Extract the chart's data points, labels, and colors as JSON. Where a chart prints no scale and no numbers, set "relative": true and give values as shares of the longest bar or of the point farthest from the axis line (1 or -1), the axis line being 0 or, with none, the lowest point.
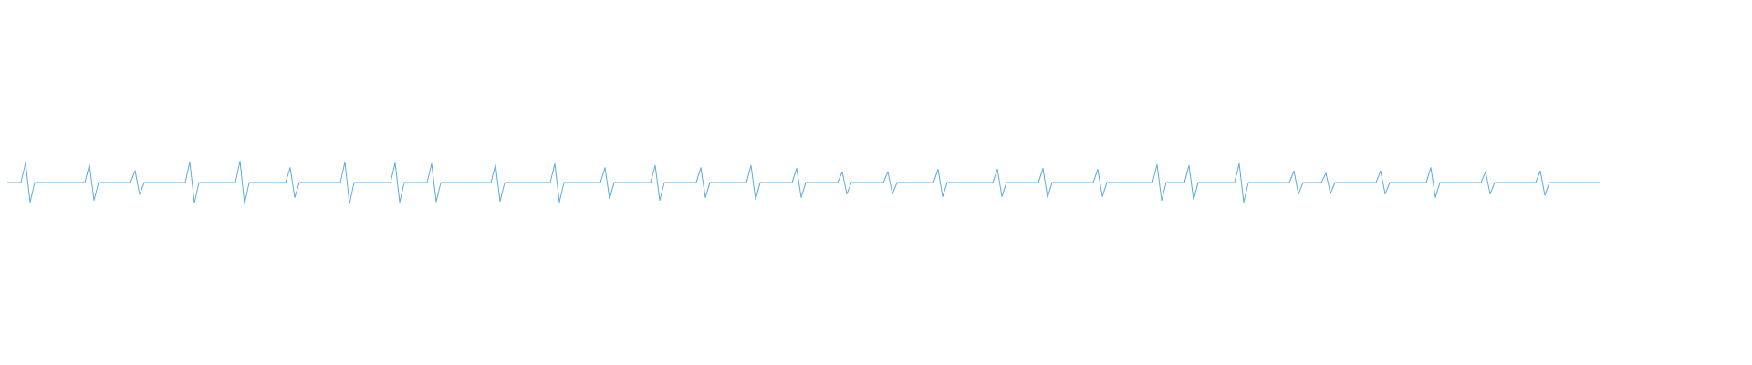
{
  "chart_data": {
    "type": "line",
    "relative": true,
    "line_style": "solid",
    "marker": "none",
    "categories": [
      null,
      null,
      null,
      null,
      null,
      null,
      null,
      null,
      null,
      null,
      null,
      null,
      null,
      null,
      null,
      null,
      null,
      null,
      null,
      null,
      null,
      null,
      null,
      null,
      null,
      null,
      null,
      null,
      null,
      null,
      null,
      null,
      null,
      null,
      null,
      null,
      null,
      null,
      null,
      null,
      null,
      null,
      null,
      null,
      null,
      null,
      null,
      null,
      null,
      null,
      null,
      null,
      null,
      null,
      null,
      null,
      null,
      null,
      null,
      null,
      null,
      null,
      null,
      null,
      null,
      null,
      null,
      null,
      null,
      null,
      null,
      null,
      null,
      null,
      null,
      null,
      null,
      null,
      null,
      null,
      null,
      null,
      null,
      null,
      null,
      null,
      null,
      null,
      null,
      null,
      null,
      null,
      null,
      null,
      null,
      null,
      null,
      null,
      null,
      null,
      null,
      null,
      null,
      null,
      null,
      null,
      null,
      null,
      null,
      null,
      null,
      null,
      null,
      null,
      null,
      null,
      null,
      null,
      null,
      null,
      null,
      null,
      null,
      null,
      null,
      null,
      null,
      null,
      null,
      null,
      null,
      null,
      null,
      null,
      null,
      null,
      null,
      null,
      null,
      null,
      null,
      null,
      null,
      null,
      null,
      null,
      null,
      null,
      null,
      null,
      null,
      null,
      null,
      null,
      null,
      null,
      null,
      null,
      null,
      null,
      null,
      null,
      null,
      null,
      null,
      null,
      null,
      null,
      null,
      null,
      null,
      null,
      null,
      null,
      null,
      null,
      null,
      null,
      null,
      null,
      null,
      null,
      null,
      null,
      null,
      null,
      null,
      null,
      null,
      null,
      null,
      null,
      null,
      null,
      null,
      null,
      null,
      null,
      null,
      null,
      null,
      null,
      null,
      null,
      null,
      null,
      null,
      null,
      null,
      null,
      null,
      null,
      null,
      null,
      null,
      null,
      null,
      null,
      null,
      null,
      null,
      null,
      null,
      null,
      null,
      null,
      null,
      null,
      null,
      null,
      null,
      null,
      null,
      null,
      null,
      null,
      null,
      null,
      null,
      null,
      null,
      null,
      null,
      null,
      null,
      null,
      null,
      null,
      null,
      null,
      null,
      null,
      null,
      null,
      null,
      null,
      null,
      null,
      null,
      null,
      null,
      null,
      null,
      null,
      null,
      null,
      null,
      null,
      null,
      null,
      null,
      null,
      null,
      null,
      null,
      null,
      null,
      null,
      null,
      null,
      null,
      null,
      null,
      null,
      null,
      null,
      null,
      null,
      null,
      null,
      null,
      null,
      null,
      null,
      null,
      null,
      null,
      null,
      null,
      null,
      null,
      null,
      null,
      null,
      null,
      null,
      null,
      null,
      null,
      null,
      null,
      null,
      null,
      null,
      null,
      null,
      null,
      null,
      null,
      null,
      null,
      null,
      null,
      null,
      null,
      null,
      null,
      null,
      null,
      null,
      null,
      null,
      null,
      null,
      null,
      null,
      null,
      null,
      null,
      null,
      null,
      null,
      null,
      null,
      null,
      null,
      null,
      null,
      null,
      null
    ],
    "series": [
      {
        "color": "#5aabe1",
        "values": [
          0.5,
          0.5,
          0.5,
          0.5,
          0.96,
          0.04,
          0.5,
          0.5,
          0.5,
          0.5,
          0.5,
          0.5,
          0.5,
          0.5,
          0.5,
          0.5,
          0.5,
          0.5,
          0.92,
          0.08,
          0.5,
          0.5,
          0.5,
          0.5,
          0.5,
          0.5,
          0.5,
          0.5,
          0.78,
          0.22,
          0.5,
          0.5,
          0.5,
          0.5,
          0.5,
          0.5,
          0.5,
          0.5,
          0.5,
          0.5,
          0.98,
          0.02,
          0.5,
          0.5,
          0.5,
          0.5,
          0.5,
          0.5,
          0.5,
          0.5,
          0.5,
          1,
          0,
          0.5,
          0.5,
          0.5,
          0.5,
          0.5,
          0.5,
          0.5,
          0.5,
          0.5,
          0.85,
          0.15,
          0.5,
          0.5,
          0.5,
          0.5,
          0.5,
          0.5,
          0.5,
          0.5,
          0.5,
          0.5,
          0.98,
          0,
          0.5,
          0.5,
          0.5,
          0.5,
          0.5,
          0.5,
          0.5,
          0.5,
          0.5,
          0.96,
          0.04,
          0.5,
          0.5,
          0.5,
          0.5,
          0.5,
          0.5,
          0.94,
          0.05,
          0.5,
          0.5,
          0.5,
          0.5,
          0.5,
          0.5,
          0.5,
          0.5,
          0.5,
          0.5,
          0.5,
          0.5,
          0.92,
          0.06,
          0.5,
          0.5,
          0.5,
          0.5,
          0.5,
          0.5,
          0.5,
          0.5,
          0.5,
          0.5,
          0.5,
          0.94,
          0.04,
          0.5,
          0.5,
          0.5,
          0.5,
          0.5,
          0.5,
          0.5,
          0.5,
          0.5,
          0.85,
          0.12,
          0.5,
          0.5,
          0.5,
          0.5,
          0.5,
          0.5,
          0.5,
          0.5,
          0.5,
          0.9,
          0.08,
          0.5,
          0.5,
          0.5,
          0.5,
          0.5,
          0.5,
          0.5,
          0.5,
          0.85,
          0.15,
          0.5,
          0.5,
          0.5,
          0.5,
          0.5,
          0.5,
          0.5,
          0.5,
          0.5,
          0.9,
          0.1,
          0.5,
          0.5,
          0.5,
          0.5,
          0.5,
          0.5,
          0.5,
          0.5,
          0.83,
          0.15,
          0.5,
          0.5,
          0.5,
          0.5,
          0.5,
          0.5,
          0.5,
          0.5,
          0.75,
          0.23,
          0.5,
          0.5,
          0.5,
          0.5,
          0.5,
          0.5,
          0.5,
          0.5,
          0.75,
          0.23,
          0.5,
          0.5,
          0.5,
          0.5,
          0.5,
          0.5,
          0.5,
          0.5,
          0.5,
          0.81,
          0.17,
          0.5,
          0.5,
          0.5,
          0.5,
          0.5,
          0.5,
          0.5,
          0.5,
          0.5,
          0.5,
          0.5,
          0.81,
          0.17,
          0.5,
          0.5,
          0.5,
          0.5,
          0.5,
          0.5,
          0.5,
          0.5,
          0.83,
          0.15,
          0.5,
          0.5,
          0.5,
          0.5,
          0.5,
          0.5,
          0.5,
          0.5,
          0.5,
          0.5,
          0.81,
          0.17,
          0.5,
          0.5,
          0.5,
          0.5,
          0.5,
          0.5,
          0.5,
          0.5,
          0.5,
          0.5,
          0.5,
          0.92,
          0.08,
          0.5,
          0.5,
          0.5,
          0.5,
          0.5,
          0.9,
          0.1,
          0.5,
          0.5,
          0.5,
          0.5,
          0.5,
          0.5,
          0.5,
          0.5,
          0.5,
          0.94,
          0.04,
          0.5,
          0.5,
          0.5,
          0.5,
          0.5,
          0.5,
          0.5,
          0.5,
          0.5,
          0.5,
          0.77,
          0.23,
          0.5,
          0.5,
          0.5,
          0.5,
          0.5,
          0.72,
          0.25,
          0.5,
          0.5,
          0.5,
          0.5,
          0.5,
          0.5,
          0.5,
          0.5,
          0.5,
          0.5,
          0.77,
          0.23,
          0.5,
          0.5,
          0.5,
          0.5,
          0.5,
          0.5,
          0.5,
          0.5,
          0.5,
          0.85,
          0.15,
          0.5,
          0.5,
          0.5,
          0.5,
          0.5,
          0.5,
          0.5,
          0.5,
          0.5,
          0.5,
          0.75,
          0.23,
          0.5,
          0.5,
          0.5,
          0.5,
          0.5,
          0.5,
          0.5,
          0.5,
          0.5,
          0.5,
          0.77,
          0.2,
          0.5,
          0.5,
          0.5,
          0.5,
          0.5,
          0.5,
          0.5,
          0.5,
          0.5,
          0.5,
          0.5,
          0.5
        ]
      }
    ]
  }
}
